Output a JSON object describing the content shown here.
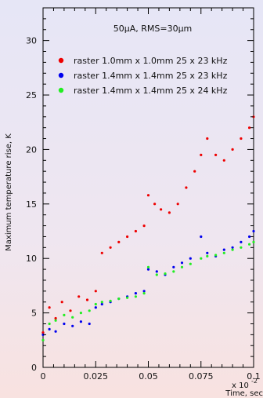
{
  "chart_data": {
    "type": "scatter",
    "title": "50μA, RMS=30μm",
    "xlabel": "Time, sec",
    "ylabel": "Maximum temperature rise, K",
    "x_multiplier": "x 10",
    "x_exponent": "-2",
    "xlim": [
      0,
      0.1
    ],
    "ylim": [
      0,
      33
    ],
    "xticks": [
      0,
      0.025,
      0.05,
      0.075,
      0.1
    ],
    "xtick_labels": [
      "0",
      "0.025",
      "0.05",
      "0.075",
      "0.1"
    ],
    "yticks": [
      0,
      5,
      10,
      15,
      20,
      25,
      30
    ],
    "ytick_labels": [
      "0",
      "5",
      "10",
      "15",
      "20",
      "25",
      "30"
    ],
    "legend_position": "top-left",
    "series": [
      {
        "name": "raster 1.0mm x 1.0mm 25 x 23 kHz",
        "color": "#ee0000",
        "x": [
          0.0,
          0.003,
          0.006,
          0.009,
          0.013,
          0.017,
          0.021,
          0.025,
          0.028,
          0.032,
          0.036,
          0.04,
          0.044,
          0.048,
          0.05,
          0.053,
          0.056,
          0.06,
          0.064,
          0.068,
          0.072,
          0.075,
          0.078,
          0.082,
          0.086,
          0.09,
          0.094,
          0.098,
          0.1
        ],
        "y": [
          3.2,
          5.5,
          4.5,
          6.0,
          5.2,
          6.5,
          6.2,
          7.0,
          10.5,
          11.0,
          11.5,
          12.0,
          12.5,
          13.0,
          15.8,
          15.0,
          14.5,
          14.2,
          15.0,
          16.5,
          18.0,
          19.5,
          21.0,
          19.5,
          19.0,
          20.0,
          21.0,
          22.0,
          23.0
        ]
      },
      {
        "name": "raster 1.4mm x 1.4mm 25 x 23 kHz",
        "color": "#0000ee",
        "x": [
          0.0,
          0.003,
          0.006,
          0.01,
          0.014,
          0.018,
          0.022,
          0.025,
          0.028,
          0.032,
          0.036,
          0.04,
          0.044,
          0.048,
          0.05,
          0.054,
          0.058,
          0.062,
          0.066,
          0.07,
          0.075,
          0.078,
          0.082,
          0.086,
          0.09,
          0.094,
          0.098,
          0.1
        ],
        "y": [
          3.0,
          3.5,
          3.3,
          4.0,
          3.8,
          4.2,
          4.0,
          5.5,
          5.8,
          6.0,
          6.3,
          6.5,
          6.8,
          7.0,
          9.0,
          8.8,
          8.5,
          9.2,
          9.6,
          10.0,
          12.0,
          10.5,
          10.2,
          10.8,
          11.0,
          11.5,
          12.0,
          12.5
        ]
      },
      {
        "name": "raster 1.4mm x 1.4mm 25 x 24 kHz",
        "color": "#22ee22",
        "x": [
          0.0,
          0.003,
          0.006,
          0.01,
          0.014,
          0.018,
          0.022,
          0.025,
          0.028,
          0.032,
          0.036,
          0.04,
          0.044,
          0.048,
          0.05,
          0.054,
          0.058,
          0.062,
          0.066,
          0.07,
          0.075,
          0.078,
          0.082,
          0.086,
          0.09,
          0.094,
          0.098,
          0.1
        ],
        "y": [
          2.5,
          4.0,
          4.3,
          4.8,
          4.6,
          5.0,
          5.2,
          5.8,
          6.0,
          6.1,
          6.3,
          6.4,
          6.5,
          6.8,
          9.2,
          8.5,
          8.6,
          8.8,
          9.2,
          9.5,
          10.0,
          10.2,
          10.3,
          10.5,
          10.8,
          11.0,
          11.3,
          11.5
        ]
      }
    ]
  }
}
